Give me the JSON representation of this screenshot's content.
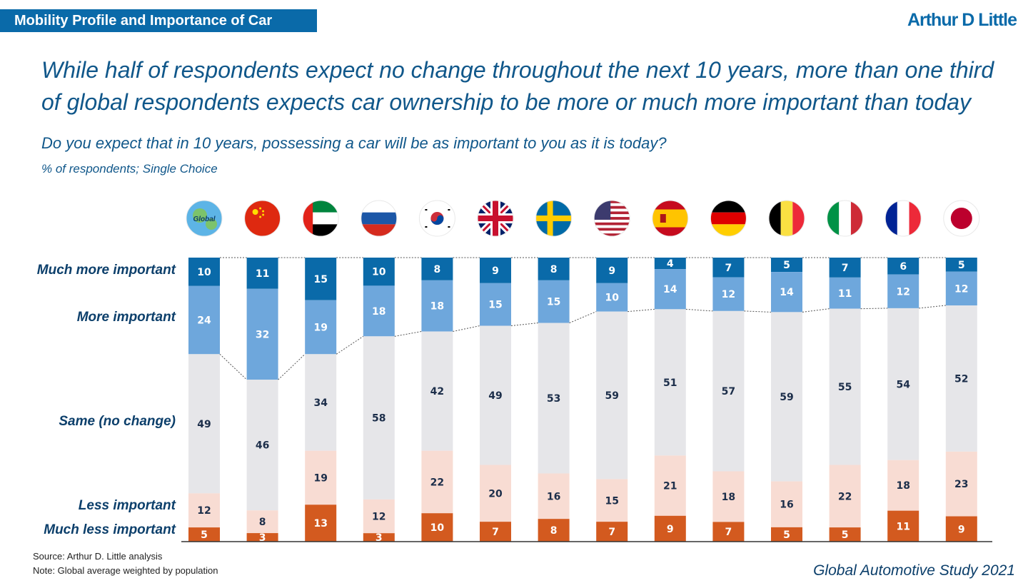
{
  "header": {
    "tag": "Mobility Profile and Importance of Car",
    "logo": "Arthur D Little"
  },
  "headline": {
    "line1": "While half of respondents expect no change throughout the next 10 years, more than one third",
    "line2": "of global respondents expects car ownership to be more or much more important than today"
  },
  "question": "Do you expect that in 10 years, possessing a car will be as important to you as it is today?",
  "subnote": "% of respondents; Single Choice",
  "footer": {
    "source": "Source: Arthur D. Little analysis",
    "note": "Note: Global average weighted by population",
    "study": "Global Automotive Study 2021"
  },
  "colors": {
    "much_more": "#0a6aa9",
    "more": "#6ea7dc",
    "same": "#e6e6e9",
    "less": "#f8dcd3",
    "much_less": "#d35a1f",
    "title_blue": "#10578a"
  },
  "chart_data": {
    "type": "bar",
    "stacked": true,
    "normalized": true,
    "title": "Do you expect that in 10 years, possessing a car will be as important to you as it is today?",
    "ylabel": "% of respondents",
    "categories": [
      "Global",
      "China",
      "UAE",
      "Russia",
      "South Korea",
      "United Kingdom",
      "Sweden",
      "United States",
      "Spain",
      "Germany",
      "Belgium",
      "Italy",
      "France",
      "Japan"
    ],
    "category_flag_labels": {
      "Global": "Global"
    },
    "series": [
      {
        "name": "Much more important",
        "values": [
          10,
          11,
          15,
          10,
          8,
          9,
          8,
          9,
          4,
          7,
          5,
          7,
          6,
          5
        ]
      },
      {
        "name": "More important",
        "values": [
          24,
          32,
          19,
          18,
          18,
          15,
          15,
          10,
          14,
          12,
          14,
          11,
          12,
          12
        ]
      },
      {
        "name": "Same (no change)",
        "values": [
          49,
          46,
          34,
          58,
          42,
          49,
          53,
          59,
          51,
          57,
          59,
          55,
          54,
          52
        ]
      },
      {
        "name": "Less important",
        "values": [
          12,
          8,
          19,
          12,
          22,
          20,
          16,
          15,
          21,
          18,
          16,
          22,
          18,
          23
        ]
      },
      {
        "name": "Much less important",
        "values": [
          5,
          3,
          13,
          3,
          10,
          7,
          8,
          7,
          9,
          7,
          5,
          5,
          11,
          9
        ]
      }
    ]
  }
}
